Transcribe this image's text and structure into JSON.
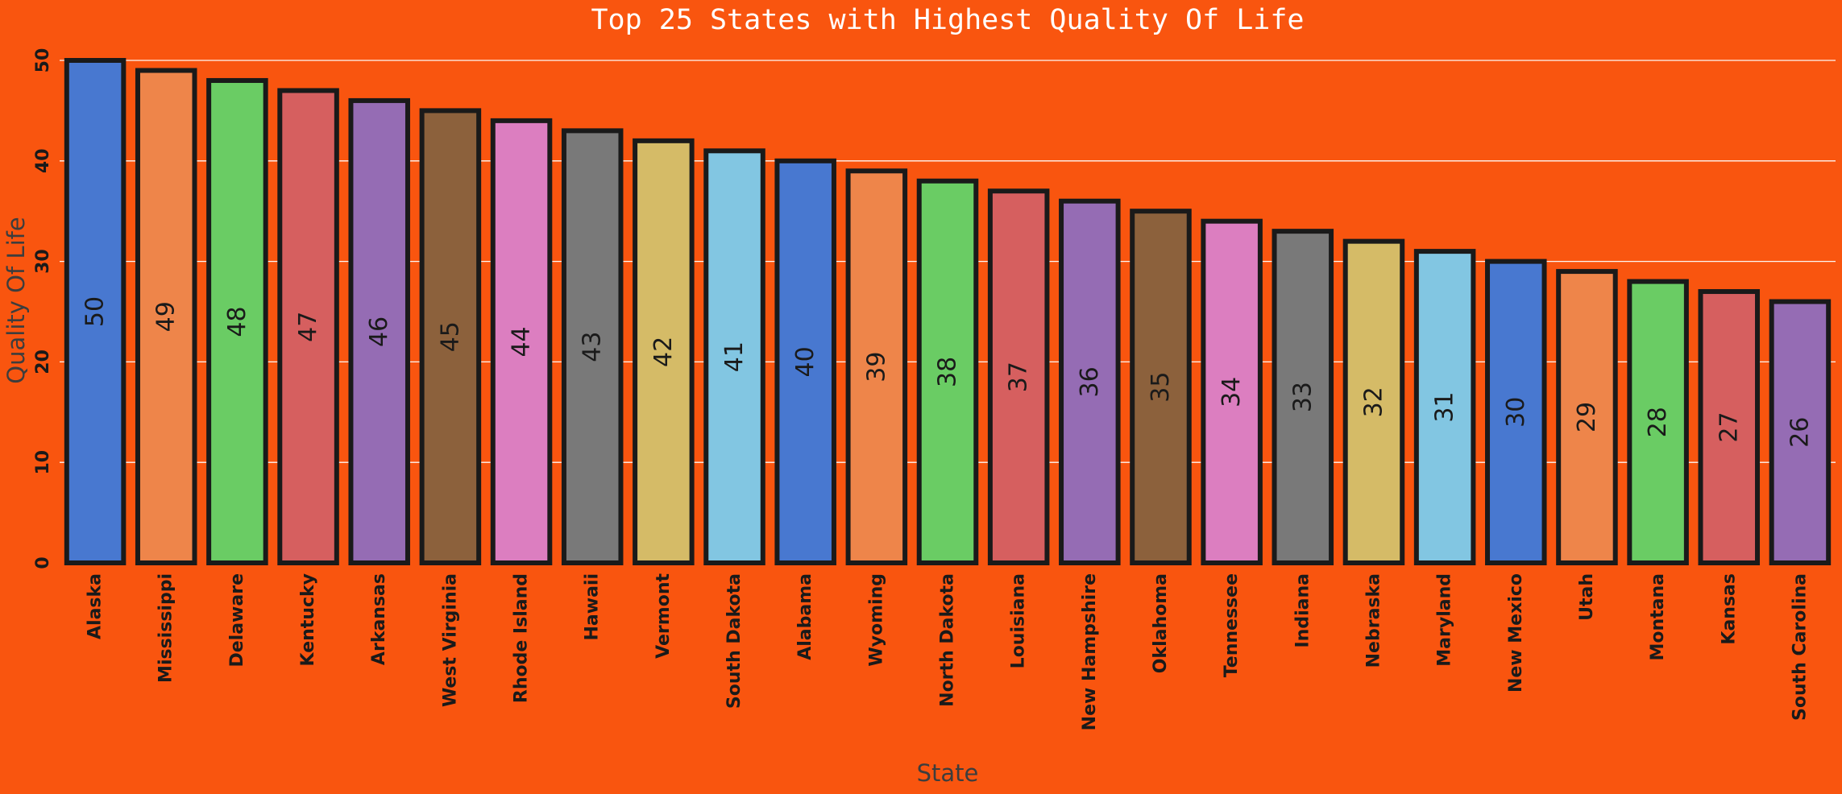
{
  "chart_data": {
    "type": "bar",
    "title": "Top 25 States with Highest Quality Of Life",
    "xlabel": "State",
    "ylabel": "Quality Of Life",
    "ylim": [
      0,
      50
    ],
    "yticks": [
      0,
      10,
      20,
      30,
      40,
      50
    ],
    "grid": true,
    "categories": [
      "Alaska",
      "Mississippi",
      "Delaware",
      "Kentucky",
      "Arkansas",
      "West Virginia",
      "Rhode Island",
      "Hawaii",
      "Vermont",
      "South Dakota",
      "Alabama",
      "Wyoming",
      "North Dakota",
      "Louisiana",
      "New Hampshire",
      "Oklahoma",
      "Tennessee",
      "Indiana",
      "Nebraska",
      "Maryland",
      "New Mexico",
      "Utah",
      "Montana",
      "Kansas",
      "South Carolina"
    ],
    "values": [
      50,
      49,
      48,
      47,
      46,
      45,
      44,
      43,
      42,
      41,
      40,
      39,
      38,
      37,
      36,
      35,
      34,
      33,
      32,
      31,
      30,
      29,
      28,
      27,
      26
    ],
    "palette": [
      "#4878d0",
      "#ee854a",
      "#6acc64",
      "#d65f5f",
      "#956cb4",
      "#8c613c",
      "#dc7ec0",
      "#797979",
      "#d5bb67",
      "#82c6e2"
    ],
    "background": "#f9550f"
  }
}
